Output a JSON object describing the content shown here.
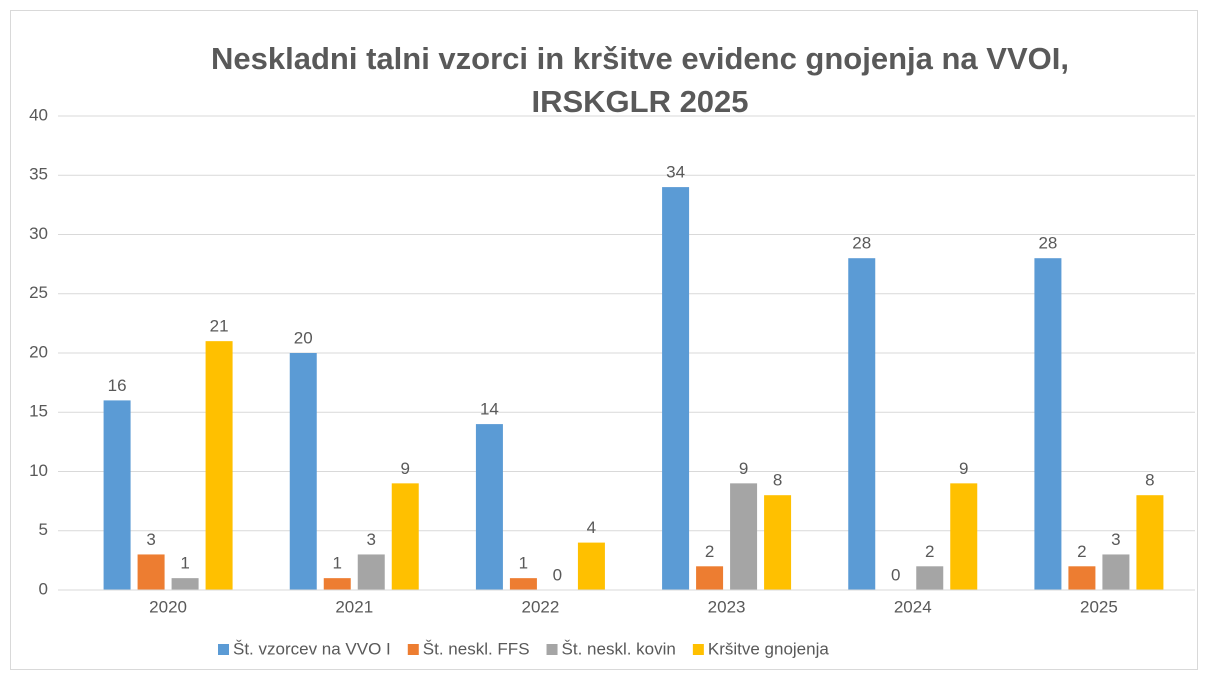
{
  "chart_data": {
    "type": "bar",
    "title": [
      "Neskladni talni vzorci in kršitve evidenc gnojenja na VVOI,",
      "IRSKGLR 2025"
    ],
    "categories": [
      "2020",
      "2021",
      "2022",
      "2023",
      "2024",
      "2025"
    ],
    "series": [
      {
        "name": "Št. vzorcev na VVO I",
        "color": "#5b9bd5",
        "values": [
          16,
          20,
          14,
          34,
          28,
          28
        ]
      },
      {
        "name": "Št. neskl. FFS",
        "color": "#ed7d31",
        "values": [
          3,
          1,
          1,
          2,
          0,
          2
        ]
      },
      {
        "name": "Št. neskl. kovin",
        "color": "#a5a5a5",
        "values": [
          1,
          3,
          0,
          9,
          2,
          3
        ]
      },
      {
        "name": "Kršitve gnojenja",
        "color": "#ffc000",
        "values": [
          21,
          9,
          4,
          8,
          9,
          8
        ]
      }
    ],
    "ylim": [
      0,
      40
    ],
    "yticks": [
      0,
      5,
      10,
      15,
      20,
      25,
      30,
      35,
      40
    ],
    "grid": true,
    "legend": "bottom"
  }
}
